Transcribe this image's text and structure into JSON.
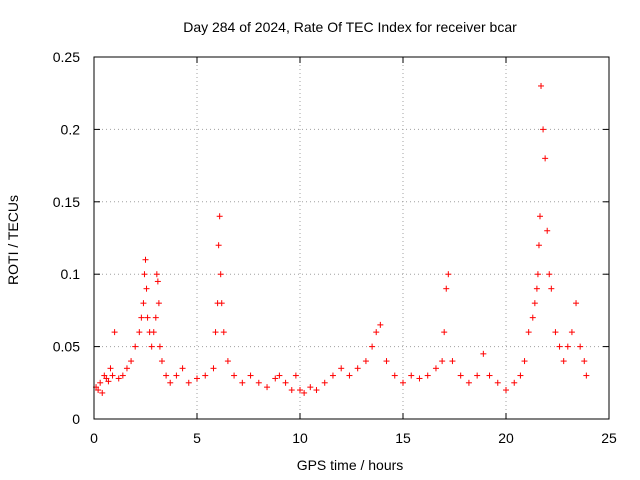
{
  "chart_data": {
    "type": "scatter",
    "title": "Day 284 of 2024, Rate Of TEC Index for receiver bcar",
    "xlabel": "GPS time / hours",
    "ylabel": "ROTI / TECUs",
    "xlim": [
      0,
      25
    ],
    "ylim": [
      0,
      0.25
    ],
    "x_ticks": [
      0,
      5,
      10,
      15,
      20,
      25
    ],
    "x_tick_labels": [
      "0",
      "5",
      "10",
      "15",
      "20",
      "25"
    ],
    "y_ticks": [
      0,
      0.05,
      0.1,
      0.15,
      0.2,
      0.25
    ],
    "y_tick_labels": [
      "0",
      "0.05",
      "0.1",
      "0.15",
      "0.2",
      "0.25"
    ],
    "grid": true,
    "marker": "+",
    "color": "#ff0000",
    "series": [
      {
        "name": "ROTI",
        "x": [
          0.1,
          0.2,
          0.3,
          0.4,
          0.5,
          0.6,
          0.7,
          0.8,
          0.9,
          1.0,
          1.2,
          1.4,
          1.6,
          1.8,
          2.0,
          2.2,
          2.3,
          2.4,
          2.45,
          2.5,
          2.55,
          2.6,
          2.7,
          2.8,
          2.9,
          3.0,
          3.05,
          3.1,
          3.15,
          3.2,
          3.3,
          3.5,
          3.7,
          4.0,
          4.3,
          4.6,
          5.0,
          5.4,
          5.8,
          5.9,
          6.0,
          6.05,
          6.1,
          6.15,
          6.2,
          6.3,
          6.5,
          6.8,
          7.2,
          7.6,
          8.0,
          8.4,
          8.8,
          9.0,
          9.3,
          9.6,
          9.8,
          10.0,
          10.2,
          10.5,
          10.8,
          11.2,
          11.6,
          12.0,
          12.4,
          12.8,
          13.2,
          13.5,
          13.7,
          13.9,
          14.2,
          14.6,
          15.0,
          15.4,
          15.8,
          16.2,
          16.6,
          16.9,
          17.0,
          17.1,
          17.2,
          17.4,
          17.8,
          18.2,
          18.6,
          18.9,
          19.2,
          19.6,
          20.0,
          20.4,
          20.7,
          20.9,
          21.1,
          21.3,
          21.4,
          21.5,
          21.55,
          21.6,
          21.65,
          21.7,
          21.8,
          21.9,
          22.0,
          22.1,
          22.2,
          22.4,
          22.6,
          22.8,
          23.0,
          23.2,
          23.4,
          23.6,
          23.8,
          23.9
        ],
        "y": [
          0.022,
          0.02,
          0.025,
          0.018,
          0.03,
          0.028,
          0.026,
          0.035,
          0.03,
          0.06,
          0.028,
          0.03,
          0.035,
          0.04,
          0.05,
          0.06,
          0.07,
          0.08,
          0.1,
          0.11,
          0.09,
          0.07,
          0.06,
          0.05,
          0.06,
          0.07,
          0.1,
          0.095,
          0.08,
          0.05,
          0.04,
          0.03,
          0.025,
          0.03,
          0.035,
          0.025,
          0.028,
          0.03,
          0.035,
          0.06,
          0.08,
          0.12,
          0.14,
          0.1,
          0.08,
          0.06,
          0.04,
          0.03,
          0.025,
          0.03,
          0.025,
          0.022,
          0.028,
          0.03,
          0.025,
          0.02,
          0.03,
          0.02,
          0.018,
          0.022,
          0.02,
          0.025,
          0.03,
          0.035,
          0.03,
          0.035,
          0.04,
          0.05,
          0.06,
          0.065,
          0.04,
          0.03,
          0.025,
          0.03,
          0.028,
          0.03,
          0.035,
          0.04,
          0.06,
          0.09,
          0.1,
          0.04,
          0.03,
          0.025,
          0.03,
          0.045,
          0.03,
          0.025,
          0.02,
          0.025,
          0.03,
          0.04,
          0.06,
          0.07,
          0.08,
          0.09,
          0.1,
          0.12,
          0.14,
          0.23,
          0.2,
          0.18,
          0.13,
          0.1,
          0.09,
          0.06,
          0.05,
          0.04,
          0.05,
          0.06,
          0.08,
          0.05,
          0.04,
          0.03
        ]
      }
    ]
  }
}
